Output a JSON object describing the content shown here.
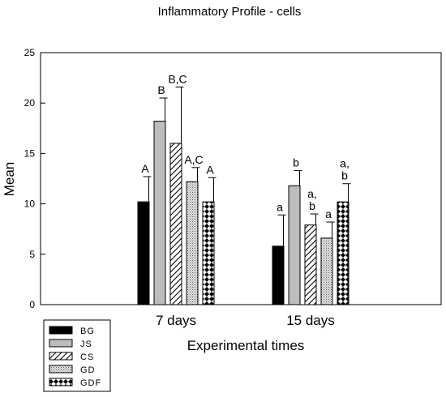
{
  "chart_data": {
    "type": "bar",
    "title": "Inflammatory Profile - cells",
    "xlabel": "Experimental times",
    "ylabel": "Mean",
    "ylim": [
      0,
      25
    ],
    "yticks": [
      "0",
      "5",
      "10",
      "15",
      "20",
      "25"
    ],
    "categories": [
      "7 days",
      "15 days"
    ],
    "legend_position": "bottom-left",
    "series": [
      {
        "name": "BG",
        "pattern": "solid-black",
        "values": [
          10.2,
          5.8
        ],
        "errors": [
          2.5,
          3.1
        ],
        "labels": [
          "A",
          "a"
        ]
      },
      {
        "name": "JS",
        "pattern": "solid-gray",
        "values": [
          18.2,
          11.8
        ],
        "errors": [
          2.3,
          1.5
        ],
        "labels": [
          "B",
          "b"
        ]
      },
      {
        "name": "CS",
        "pattern": "diagonal-hatch",
        "values": [
          16.0,
          7.9
        ],
        "errors": [
          5.6,
          1.1
        ],
        "labels": [
          "B,C",
          "a,\nb"
        ]
      },
      {
        "name": "GD",
        "pattern": "fine-dots",
        "values": [
          12.2,
          6.6
        ],
        "errors": [
          1.4,
          1.6
        ],
        "labels": [
          "A,C",
          "a"
        ]
      },
      {
        "name": "GDF",
        "pattern": "checker",
        "values": [
          10.2,
          10.2
        ],
        "errors": [
          2.4,
          1.8
        ],
        "labels": [
          "A",
          "a,\nb"
        ]
      }
    ]
  }
}
